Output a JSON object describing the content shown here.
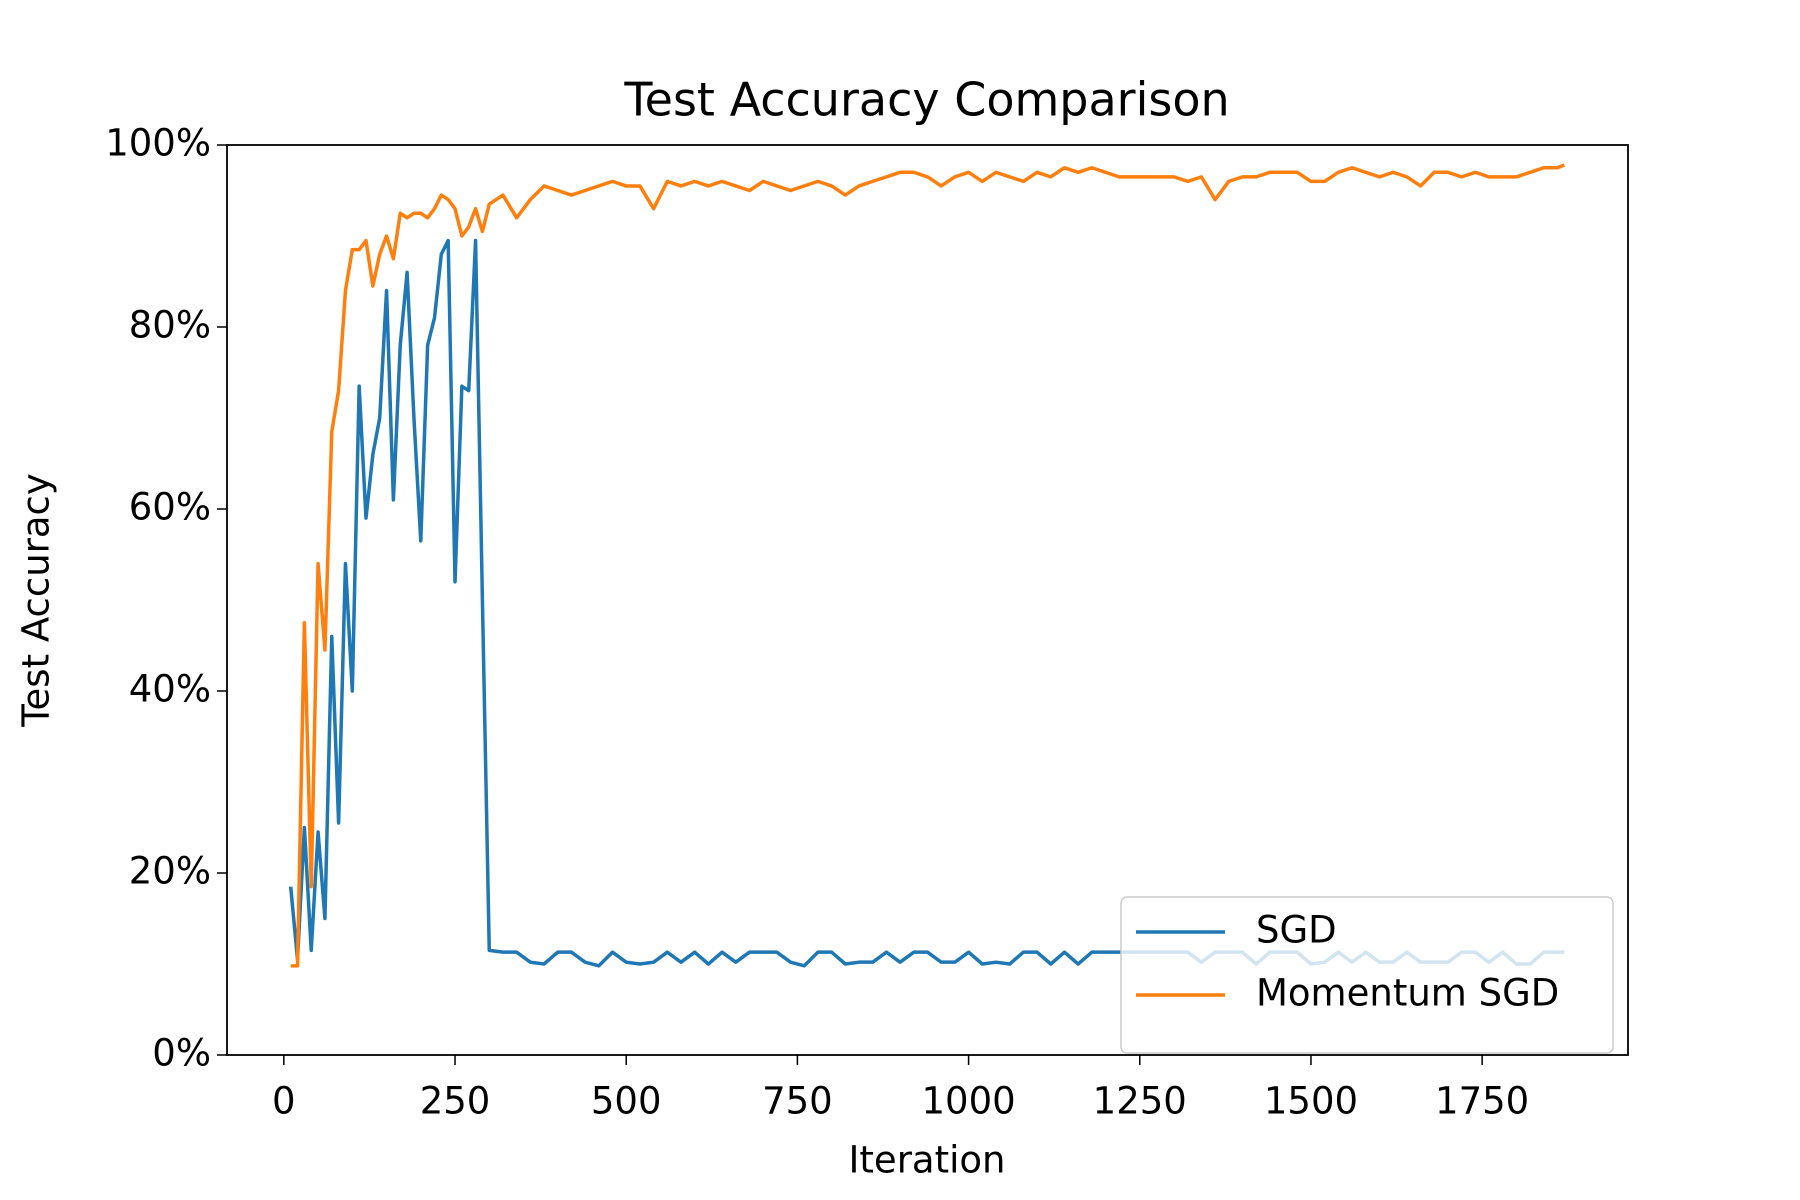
{
  "chart_data": {
    "type": "line",
    "title": "Test Accuracy Comparison",
    "x_label": "Iteration",
    "y_label": "Test Accuracy",
    "x": [
      10,
      20,
      30,
      40,
      50,
      60,
      70,
      80,
      90,
      100,
      110,
      120,
      130,
      140,
      150,
      160,
      170,
      180,
      190,
      200,
      210,
      220,
      230,
      240,
      250,
      260,
      270,
      280,
      290,
      300,
      320,
      340,
      360,
      380,
      400,
      420,
      440,
      460,
      480,
      500,
      520,
      540,
      560,
      580,
      600,
      620,
      640,
      660,
      680,
      700,
      720,
      740,
      760,
      780,
      800,
      820,
      840,
      860,
      880,
      900,
      920,
      940,
      960,
      980,
      1000,
      1020,
      1040,
      1060,
      1080,
      1100,
      1120,
      1140,
      1160,
      1180,
      1200,
      1220,
      1240,
      1260,
      1280,
      1300,
      1320,
      1340,
      1360,
      1380,
      1400,
      1420,
      1440,
      1460,
      1480,
      1500,
      1520,
      1540,
      1560,
      1580,
      1600,
      1620,
      1640,
      1660,
      1680,
      1700,
      1720,
      1740,
      1760,
      1780,
      1800,
      1820,
      1840,
      1860,
      1870
    ],
    "series": [
      {
        "name": "SGD",
        "color": "#1f77b4",
        "values": [
          18.5,
          10.5,
          25,
          11.5,
          24.5,
          15,
          46,
          25.5,
          54,
          40,
          73.5,
          59,
          66,
          70,
          84,
          61,
          78,
          86,
          70,
          56.5,
          78,
          81,
          88,
          89.5,
          52,
          73.5,
          73,
          89.5,
          50,
          11.5,
          11.3,
          11.3,
          10.2,
          10,
          11.3,
          11.3,
          10.2,
          9.8,
          11.3,
          10.2,
          10,
          10.2,
          11.3,
          10.2,
          11.3,
          10,
          11.3,
          10.2,
          11.3,
          11.3,
          11.3,
          10.2,
          9.8,
          11.3,
          11.3,
          10,
          10.2,
          10.2,
          11.3,
          10.2,
          11.3,
          11.3,
          10.2,
          10.2,
          11.3,
          10,
          10.2,
          10,
          11.3,
          11.3,
          10,
          11.3,
          10,
          11.3,
          11.3,
          11.3,
          11.3,
          11.3,
          11.3,
          11.3,
          11.3,
          10.2,
          11.3,
          11.3,
          11.3,
          10,
          11.3,
          11.3,
          11.3,
          10,
          10.2,
          11.3,
          10.2,
          11.3,
          10.2,
          10.2,
          11.3,
          10.2,
          10.2,
          10.2,
          11.3,
          11.3,
          10.2,
          11.3,
          10,
          10,
          11.3,
          11.3,
          11.3
        ]
      },
      {
        "name": "Momentum SGD",
        "color": "#ff7f0e",
        "values": [
          9.8,
          9.8,
          47.5,
          18.5,
          54,
          44.5,
          68.5,
          73,
          84,
          88.5,
          88.5,
          89.5,
          84.5,
          88,
          90,
          87.5,
          92.5,
          92,
          92.5,
          92.5,
          92,
          93,
          94.5,
          94,
          93,
          90,
          91,
          93,
          90.5,
          93.5,
          94.5,
          92,
          94,
          95.5,
          95,
          94.5,
          95,
          95.5,
          96,
          95.5,
          95.5,
          93,
          96,
          95.5,
          96,
          95.5,
          96,
          95.5,
          95,
          96,
          95.5,
          95,
          95.5,
          96,
          95.5,
          94.5,
          95.5,
          96,
          96.5,
          97,
          97,
          96.5,
          95.5,
          96.5,
          97,
          96,
          97,
          96.5,
          96,
          97,
          96.5,
          97.5,
          97,
          97.5,
          97,
          96.5,
          96.5,
          96.5,
          96.5,
          96.5,
          96,
          96.5,
          94,
          96,
          96.5,
          96.5,
          97,
          97,
          97,
          96,
          96,
          97,
          97.5,
          97,
          96.5,
          97,
          96.5,
          95.5,
          97,
          97,
          96.5,
          97,
          96.5,
          96.5,
          96.5,
          97,
          97.5,
          97.5,
          97.8
        ]
      }
    ],
    "xlim": [
      -83,
      1963
    ],
    "xticks": [
      0,
      250,
      500,
      750,
      1000,
      1250,
      1500,
      1750
    ],
    "ylim": [
      0,
      100
    ],
    "yticks": [
      {
        "value": 0,
        "label": "0%"
      },
      {
        "value": 20,
        "label": "20%"
      },
      {
        "value": 40,
        "label": "40%"
      },
      {
        "value": 60,
        "label": "60%"
      },
      {
        "value": 80,
        "label": "80%"
      },
      {
        "value": 100,
        "label": "100%"
      }
    ],
    "legend": "lower right"
  }
}
